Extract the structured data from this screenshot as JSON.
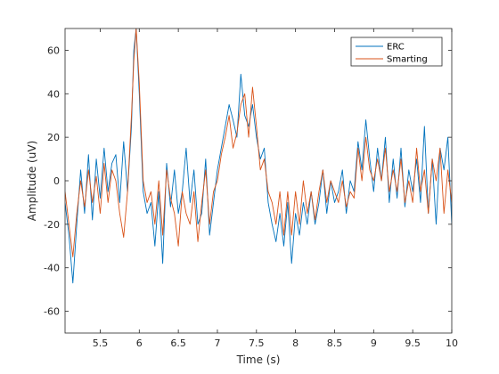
{
  "chart_data": {
    "type": "line",
    "xlabel": "Time (s)",
    "ylabel": "Amplitude (uV)",
    "xlim": [
      5.05,
      10.0
    ],
    "ylim": [
      -70,
      70
    ],
    "x_ticks": [
      5.5,
      6,
      6.5,
      7,
      7.5,
      8,
      8.5,
      9,
      9.5,
      10
    ],
    "x_tick_labels": [
      "5.5",
      "6",
      "6.5",
      "7",
      "7.5",
      "8",
      "8.5",
      "9",
      "9.5",
      "10"
    ],
    "y_ticks": [
      -60,
      -40,
      -20,
      0,
      20,
      40,
      60
    ],
    "y_tick_labels": [
      "-60",
      "-40",
      "-20",
      "0",
      "20",
      "40",
      "60"
    ],
    "grid": false,
    "legend_position": "top-right",
    "series": [
      {
        "name": "ERC",
        "color": "#0072bd",
        "x": [
          5.05,
          5.1,
          5.15,
          5.2,
          5.25,
          5.3,
          5.35,
          5.4,
          5.45,
          5.5,
          5.55,
          5.6,
          5.65,
          5.7,
          5.75,
          5.8,
          5.85,
          5.9,
          5.93,
          5.96,
          6.0,
          6.05,
          6.1,
          6.15,
          6.2,
          6.25,
          6.3,
          6.35,
          6.4,
          6.45,
          6.5,
          6.55,
          6.6,
          6.65,
          6.7,
          6.75,
          6.8,
          6.85,
          6.9,
          6.95,
          7.0,
          7.05,
          7.1,
          7.15,
          7.2,
          7.25,
          7.3,
          7.35,
          7.4,
          7.45,
          7.5,
          7.55,
          7.6,
          7.65,
          7.7,
          7.75,
          7.8,
          7.85,
          7.9,
          7.95,
          8.0,
          8.05,
          8.1,
          8.15,
          8.2,
          8.25,
          8.3,
          8.35,
          8.4,
          8.45,
          8.5,
          8.55,
          8.6,
          8.65,
          8.7,
          8.75,
          8.8,
          8.85,
          8.9,
          8.95,
          9.0,
          9.05,
          9.1,
          9.15,
          9.2,
          9.25,
          9.3,
          9.35,
          9.4,
          9.45,
          9.5,
          9.55,
          9.6,
          9.65,
          9.7,
          9.75,
          9.8,
          9.85,
          9.9,
          9.95,
          10.0
        ],
        "values": [
          -10,
          -25,
          -47,
          -20,
          5,
          -15,
          12,
          -18,
          10,
          -8,
          15,
          -5,
          8,
          12,
          -10,
          18,
          -5,
          25,
          60,
          70,
          40,
          -5,
          -15,
          -10,
          -30,
          -5,
          -38,
          8,
          -12,
          5,
          -15,
          -5,
          15,
          -10,
          5,
          -20,
          -15,
          10,
          -25,
          -10,
          5,
          15,
          25,
          35,
          28,
          20,
          49,
          30,
          25,
          35,
          20,
          10,
          15,
          -10,
          -20,
          -28,
          -15,
          -30,
          -10,
          -38,
          -15,
          -25,
          -10,
          -20,
          -5,
          -20,
          -10,
          5,
          -15,
          0,
          -10,
          -5,
          5,
          -15,
          0,
          -5,
          18,
          5,
          28,
          10,
          -5,
          15,
          0,
          20,
          -10,
          10,
          -8,
          15,
          -12,
          5,
          -5,
          10,
          -10,
          25,
          -15,
          10,
          -20,
          15,
          5,
          20,
          -20
        ]
      },
      {
        "name": "Smarting",
        "color": "#d95319",
        "x": [
          5.05,
          5.1,
          5.15,
          5.2,
          5.25,
          5.3,
          5.35,
          5.4,
          5.45,
          5.5,
          5.55,
          5.6,
          5.65,
          5.7,
          5.75,
          5.8,
          5.85,
          5.9,
          5.93,
          5.96,
          6.0,
          6.05,
          6.1,
          6.15,
          6.2,
          6.25,
          6.3,
          6.35,
          6.4,
          6.45,
          6.5,
          6.55,
          6.6,
          6.65,
          6.7,
          6.75,
          6.8,
          6.85,
          6.9,
          6.95,
          7.0,
          7.05,
          7.1,
          7.15,
          7.2,
          7.25,
          7.3,
          7.35,
          7.4,
          7.45,
          7.5,
          7.55,
          7.6,
          7.65,
          7.7,
          7.75,
          7.8,
          7.85,
          7.9,
          7.95,
          8.0,
          8.05,
          8.1,
          8.15,
          8.2,
          8.25,
          8.3,
          8.35,
          8.4,
          8.45,
          8.5,
          8.55,
          8.6,
          8.65,
          8.7,
          8.75,
          8.8,
          8.85,
          8.9,
          8.95,
          9.0,
          9.05,
          9.1,
          9.15,
          9.2,
          9.25,
          9.3,
          9.35,
          9.4,
          9.45,
          9.5,
          9.55,
          9.6,
          9.65,
          9.7,
          9.75,
          9.8,
          9.85,
          9.9,
          9.95,
          10.0
        ],
        "values": [
          -5,
          -20,
          -35,
          -15,
          0,
          -12,
          5,
          -10,
          2,
          -15,
          8,
          -10,
          5,
          0,
          -15,
          -26,
          -5,
          30,
          55,
          70,
          45,
          0,
          -10,
          -5,
          -20,
          0,
          -25,
          5,
          -8,
          -15,
          -30,
          -5,
          -15,
          -20,
          -5,
          -28,
          -10,
          5,
          -20,
          -5,
          0,
          12,
          20,
          30,
          15,
          22,
          35,
          40,
          20,
          43,
          25,
          5,
          10,
          -5,
          -10,
          -20,
          -5,
          -25,
          -5,
          -25,
          -5,
          -20,
          0,
          -15,
          -5,
          -18,
          -5,
          5,
          -10,
          0,
          -5,
          -10,
          0,
          -12,
          -5,
          -8,
          15,
          0,
          20,
          5,
          0,
          10,
          0,
          15,
          -5,
          5,
          -5,
          10,
          -10,
          0,
          -10,
          15,
          -5,
          5,
          -15,
          10,
          0,
          15,
          -15,
          5,
          -10
        ]
      }
    ]
  }
}
